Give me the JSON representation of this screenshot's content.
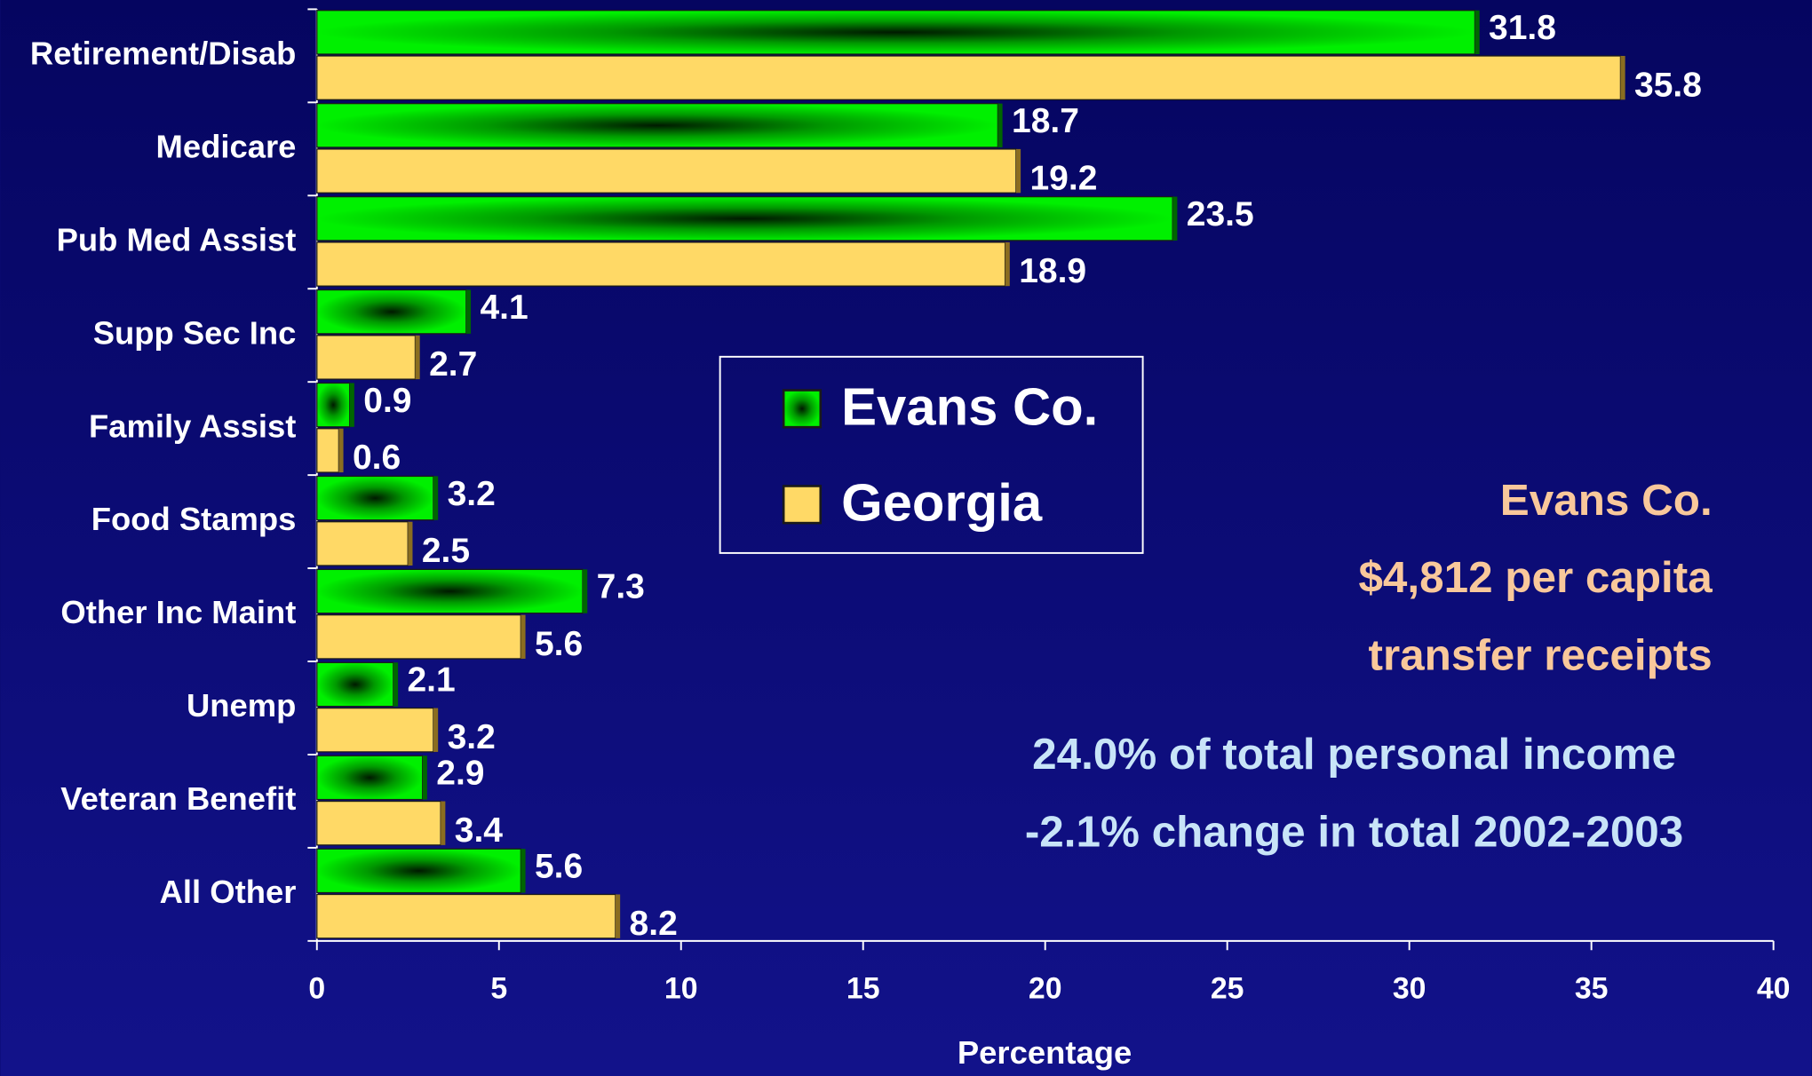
{
  "chart_data": {
    "type": "bar",
    "orientation": "horizontal",
    "categories": [
      "Retirement/Disab",
      "Medicare",
      "Pub Med Assist",
      "Supp Sec Inc",
      "Family Assist",
      "Food Stamps",
      "Other Inc Maint",
      "Unemp",
      "Veteran Benefit",
      "All Other"
    ],
    "series": [
      {
        "name": "Evans Co.",
        "color": "#00e000",
        "values": [
          31.8,
          18.7,
          23.5,
          4.1,
          0.9,
          3.2,
          7.3,
          2.1,
          2.9,
          5.6
        ]
      },
      {
        "name": "Georgia",
        "color": "#ffd966",
        "values": [
          35.8,
          19.2,
          18.9,
          2.7,
          0.6,
          2.5,
          5.6,
          3.2,
          3.4,
          8.2
        ]
      }
    ],
    "xlabel": "Percentage",
    "xlim": [
      0,
      40
    ],
    "xticks": [
      0,
      5,
      10,
      15,
      20,
      25,
      30,
      35,
      40
    ],
    "legend": "center",
    "annotations": [
      "Evans Co.",
      "$4,812 per capita",
      "transfer receipts",
      "24.0% of total personal income",
      "-2.1% change in total 2002-2003"
    ]
  }
}
